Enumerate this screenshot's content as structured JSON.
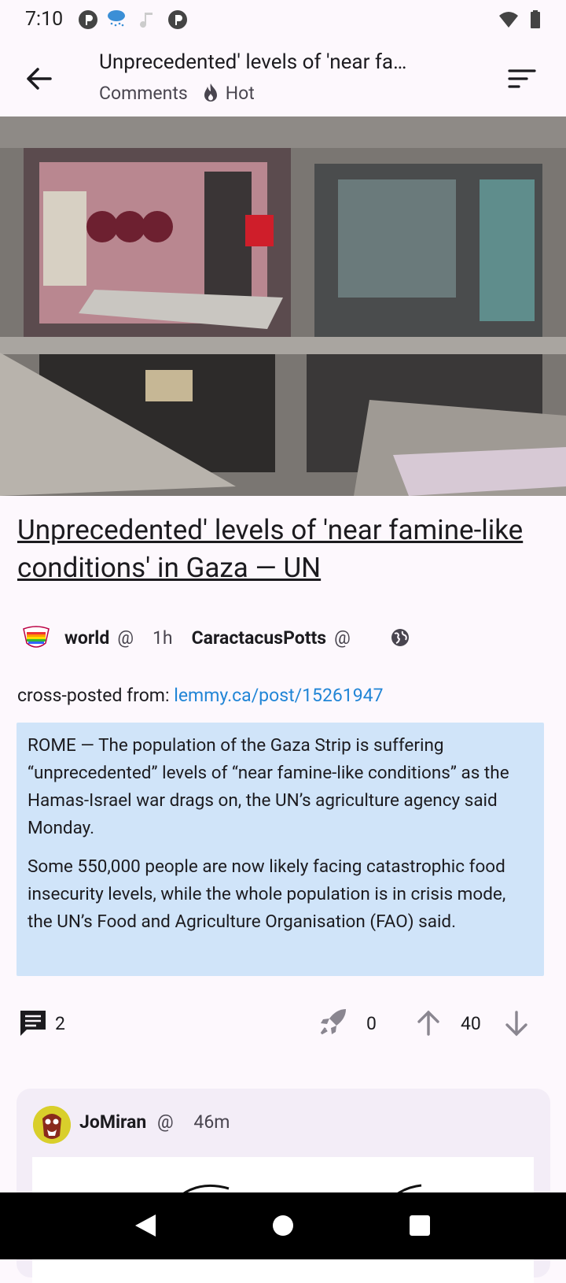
{
  "status_bar": {
    "time": "7:10"
  },
  "app_bar": {
    "title": "Unprecedented' levels of 'near fa…",
    "subtitle_left": "Comments",
    "sort_label": "Hot"
  },
  "post": {
    "title": "Unprecedented' levels of 'near famine-like conditions' in Gaza — UN",
    "community": "world",
    "community_at": "@",
    "age": "1h",
    "author": "CaractacusPotts",
    "author_at": "@",
    "crosspost_label": "cross-posted from:",
    "crosspost_link": "lemmy.ca/post/15261947",
    "quote_p1": "ROME — The population of the Gaza Strip is suffering “unprecedented” levels of “near famine-like conditions” as the Hamas-Israel war drags on, the UN’s agriculture agency said Monday.",
    "quote_p2": "Some 550,000 people are now likely facing catastrophic food insecurity levels, while the whole population is in crisis mode, the UN’s Food and Agriculture Organisation (FAO) said.",
    "comment_count": "2",
    "boost_count": "0",
    "score": "40"
  },
  "comment": {
    "user": "JoMiran",
    "user_at": "@",
    "age": "46m"
  },
  "colors": {
    "accent_link": "#2185d6",
    "quote_bg": "#d0e4f9",
    "background": "#fdf8fd",
    "card": "#f3edf7"
  }
}
